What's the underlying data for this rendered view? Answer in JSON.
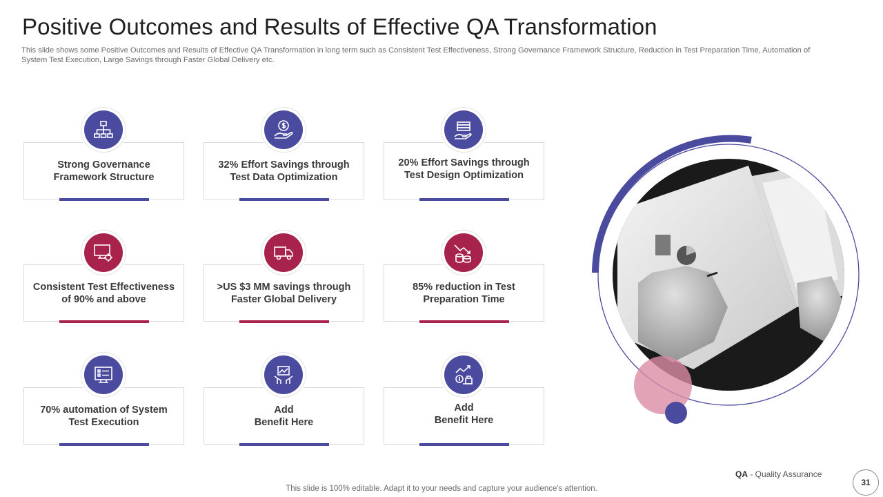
{
  "header": {
    "title": "Positive Outcomes and Results of Effective QA Transformation",
    "subtitle": "This slide shows some Positive Outcomes and Results of Effective QA Transformation in long term such as Consistent Test Effectiveness, Strong Governance Framework Structure, Reduction in Test Preparation Time, Automation of System Test Execution, Large Savings through Faster Global Delivery etc."
  },
  "colors": {
    "blue": "#4a4a9e",
    "red": "#a8234b",
    "pink": "#d98ca3"
  },
  "cards": [
    {
      "text": "Strong Governance\nFramework Structure",
      "icon": "org-chart-icon",
      "color": "blue"
    },
    {
      "text": "32% Effort Savings through\nTest Data Optimization",
      "icon": "dollar-hand-icon",
      "color": "blue"
    },
    {
      "text": "20% Effort Savings through\nTest Design Optimization",
      "icon": "money-hand-icon",
      "color": "blue"
    },
    {
      "text": "Consistent Test Effectiveness\nof 90% and above",
      "icon": "monitor-gear-icon",
      "color": "red"
    },
    {
      "text": ">US $3 MM savings through\nFaster Global Delivery",
      "icon": "delivery-truck-icon",
      "color": "red"
    },
    {
      "text": "85% reduction in Test\nPreparation Time",
      "icon": "chart-down-coins-icon",
      "color": "red"
    },
    {
      "text": "70% automation of System\nTest Execution",
      "icon": "checklist-screen-icon",
      "color": "blue"
    },
    {
      "text": "Add\nBenefit Here",
      "icon": "growth-hands-icon",
      "color": "blue"
    },
    {
      "text": "Add\nBenefit Here",
      "icon": "growth-plant-icon",
      "color": "blue"
    }
  ],
  "footer": {
    "note": "This slide is 100% editable. Adapt it to your needs and capture your audience's attention.",
    "qa_abbr": "QA",
    "qa_full": " - Quality Assurance",
    "page": "31"
  }
}
